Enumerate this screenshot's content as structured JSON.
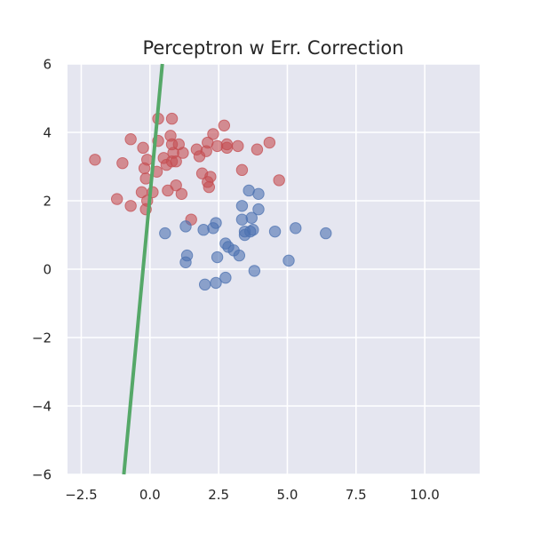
{
  "chart_data": {
    "type": "scatter",
    "title": "Perceptron w Err. Correction",
    "xlabel": "",
    "ylabel": "",
    "xlim": [
      -3.0,
      12.0
    ],
    "ylim": [
      -6,
      6
    ],
    "x_ticks": [
      -2.5,
      0.0,
      2.5,
      5.0,
      7.5,
      10.0
    ],
    "x_tick_labels": [
      "−2.5",
      "0.0",
      "2.5",
      "5.0",
      "7.5",
      "10.0"
    ],
    "y_ticks": [
      6,
      4,
      2,
      0,
      -2,
      -4,
      -6
    ],
    "y_tick_labels": [
      "6",
      "4",
      "2",
      "0",
      "−2",
      "−4",
      "−6"
    ],
    "grid": true,
    "colors": {
      "background": "#e5e6f0",
      "grid": "#ffffff",
      "class_a": "#c44e52",
      "class_b": "#4c72b0",
      "boundary": "#55a868"
    },
    "series": [
      {
        "color": "#c44e52",
        "points": [
          [
            -2.0,
            3.2
          ],
          [
            -1.0,
            3.1
          ],
          [
            -0.7,
            3.8
          ],
          [
            -0.25,
            3.55
          ],
          [
            -0.2,
            2.95
          ],
          [
            -0.1,
            3.2
          ],
          [
            -0.15,
            2.65
          ],
          [
            -1.2,
            2.05
          ],
          [
            -0.7,
            1.85
          ],
          [
            -0.3,
            2.25
          ],
          [
            -0.1,
            2.0
          ],
          [
            0.1,
            2.25
          ],
          [
            -0.15,
            1.75
          ],
          [
            0.3,
            4.4
          ],
          [
            0.8,
            4.4
          ],
          [
            0.3,
            3.75
          ],
          [
            0.75,
            3.9
          ],
          [
            0.8,
            3.65
          ],
          [
            1.05,
            3.65
          ],
          [
            0.5,
            3.25
          ],
          [
            0.85,
            3.4
          ],
          [
            1.2,
            3.4
          ],
          [
            0.6,
            3.05
          ],
          [
            0.8,
            3.15
          ],
          [
            0.95,
            3.15
          ],
          [
            0.25,
            2.85
          ],
          [
            0.65,
            2.3
          ],
          [
            0.95,
            2.45
          ],
          [
            1.15,
            2.2
          ],
          [
            1.5,
            1.45
          ],
          [
            1.7,
            3.5
          ],
          [
            1.8,
            3.3
          ],
          [
            2.05,
            3.45
          ],
          [
            2.1,
            3.7
          ],
          [
            2.3,
            3.95
          ],
          [
            2.45,
            3.6
          ],
          [
            2.7,
            4.2
          ],
          [
            2.8,
            3.55
          ],
          [
            2.8,
            3.65
          ],
          [
            3.2,
            3.6
          ],
          [
            3.35,
            2.9
          ],
          [
            3.9,
            3.5
          ],
          [
            4.35,
            3.7
          ],
          [
            4.7,
            2.6
          ],
          [
            1.9,
            2.8
          ],
          [
            2.1,
            2.55
          ],
          [
            2.2,
            2.7
          ],
          [
            2.15,
            2.4
          ]
        ]
      },
      {
        "color": "#4c72b0",
        "points": [
          [
            0.55,
            1.05
          ],
          [
            1.3,
            1.25
          ],
          [
            1.35,
            0.4
          ],
          [
            1.3,
            0.2
          ],
          [
            1.95,
            1.15
          ],
          [
            2.3,
            1.2
          ],
          [
            2.4,
            1.35
          ],
          [
            2.75,
            0.75
          ],
          [
            2.85,
            0.65
          ],
          [
            3.05,
            0.55
          ],
          [
            3.25,
            0.4
          ],
          [
            2.45,
            0.35
          ],
          [
            2.0,
            -0.45
          ],
          [
            2.4,
            -0.4
          ],
          [
            2.75,
            -0.25
          ],
          [
            3.35,
            1.85
          ],
          [
            3.6,
            2.3
          ],
          [
            3.95,
            2.2
          ],
          [
            3.35,
            1.45
          ],
          [
            3.7,
            1.5
          ],
          [
            3.95,
            1.75
          ],
          [
            3.45,
            1.1
          ],
          [
            3.45,
            1.0
          ],
          [
            3.65,
            1.1
          ],
          [
            3.75,
            1.15
          ],
          [
            3.8,
            -0.05
          ],
          [
            4.55,
            1.1
          ],
          [
            5.05,
            0.25
          ],
          [
            5.3,
            1.2
          ],
          [
            6.4,
            1.05
          ]
        ]
      }
    ],
    "decision_boundary": {
      "x": [
        -0.95,
        0.45
      ],
      "y": [
        -6,
        6
      ]
    }
  }
}
